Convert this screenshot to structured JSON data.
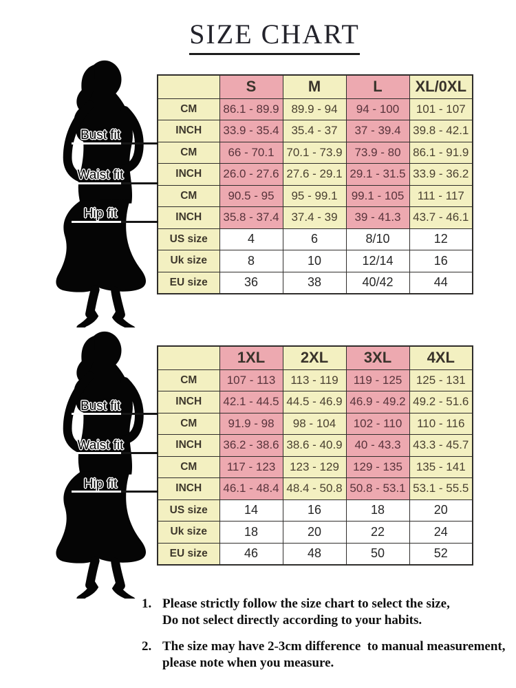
{
  "title": "SIZE CHART",
  "figure_labels": [
    "Bust fit",
    "Waist fit",
    "Hip fit"
  ],
  "colors": {
    "pink": "#eda9b0",
    "yellow": "#f3f0c1",
    "white": "#ffffff",
    "border": "#2e2c2a",
    "page": "#ffffff"
  },
  "chart_data": [
    {
      "type": "table",
      "columns": [
        "S",
        "M",
        "L",
        "XL/0XL"
      ],
      "rows": [
        {
          "section": "Bust fit",
          "label": "CM",
          "values": [
            "86.1 - 89.9",
            "89.9 - 94",
            "94 - 100",
            "101 - 107"
          ]
        },
        {
          "section": "Bust fit",
          "label": "INCH",
          "values": [
            "33.9 - 35.4",
            "35.4 - 37",
            "37 - 39.4",
            "39.8 - 42.1"
          ]
        },
        {
          "section": "Waist fit",
          "label": "CM",
          "values": [
            "66 - 70.1",
            "70.1 - 73.9",
            "73.9 - 80",
            "86.1 - 91.9"
          ]
        },
        {
          "section": "Waist fit",
          "label": "INCH",
          "values": [
            "26.0 - 27.6",
            "27.6 - 29.1",
            "29.1 - 31.5",
            "33.9 - 36.2"
          ]
        },
        {
          "section": "Hip fit",
          "label": "CM",
          "values": [
            "90.5 - 95",
            "95 - 99.1",
            "99.1 - 105",
            "111 - 117"
          ]
        },
        {
          "section": "Hip fit",
          "label": "INCH",
          "values": [
            "35.8 - 37.4",
            "37.4 - 39",
            "39 - 41.3",
            "43.7 - 46.1"
          ]
        },
        {
          "section": "sizes",
          "label": "US size",
          "values": [
            "4",
            "6",
            "8/10",
            "12"
          ]
        },
        {
          "section": "sizes",
          "label": "Uk size",
          "values": [
            "8",
            "10",
            "12/14",
            "16"
          ]
        },
        {
          "section": "sizes",
          "label": "EU size",
          "values": [
            "36",
            "38",
            "40/42",
            "44"
          ]
        }
      ]
    },
    {
      "type": "table",
      "columns": [
        "1XL",
        "2XL",
        "3XL",
        "4XL"
      ],
      "rows": [
        {
          "section": "Bust fit",
          "label": "CM",
          "values": [
            "107 - 113",
            "113 - 119",
            "119 - 125",
            "125 - 131"
          ]
        },
        {
          "section": "Bust fit",
          "label": "INCH",
          "values": [
            "42.1 - 44.5",
            "44.5 - 46.9",
            "46.9 - 49.2",
            "49.2 - 51.6"
          ]
        },
        {
          "section": "Waist fit",
          "label": "CM",
          "values": [
            "91.9 - 98",
            "98 - 104",
            "102 - 110",
            "110 - 116"
          ]
        },
        {
          "section": "Waist fit",
          "label": "INCH",
          "values": [
            "36.2 - 38.6",
            "38.6 - 40.9",
            "40 - 43.3",
            "43.3 - 45.7"
          ]
        },
        {
          "section": "Hip fit",
          "label": "CM",
          "values": [
            "117 - 123",
            "123 - 129",
            "129 - 135",
            "135 - 141"
          ]
        },
        {
          "section": "Hip fit",
          "label": "INCH",
          "values": [
            "46.1 - 48.4",
            "48.4 - 50.8",
            "50.8 - 53.1",
            "53.1 - 55.5"
          ]
        },
        {
          "section": "sizes",
          "label": "US size",
          "values": [
            "14",
            "16",
            "18",
            "20"
          ]
        },
        {
          "section": "sizes",
          "label": "Uk size",
          "values": [
            "18",
            "20",
            "22",
            "24"
          ]
        },
        {
          "section": "sizes",
          "label": "EU size",
          "values": [
            "46",
            "48",
            "50",
            "52"
          ]
        }
      ]
    }
  ],
  "notes": {
    "items": [
      {
        "num": "1.",
        "line1": "Please strictly follow the size chart to select the size,",
        "line2": "Do not select directly according to your habits."
      },
      {
        "num": "2.",
        "line1": "The size may have 2-3cm difference  to manual measurement,",
        "line2": "please note when you measure."
      }
    ]
  }
}
